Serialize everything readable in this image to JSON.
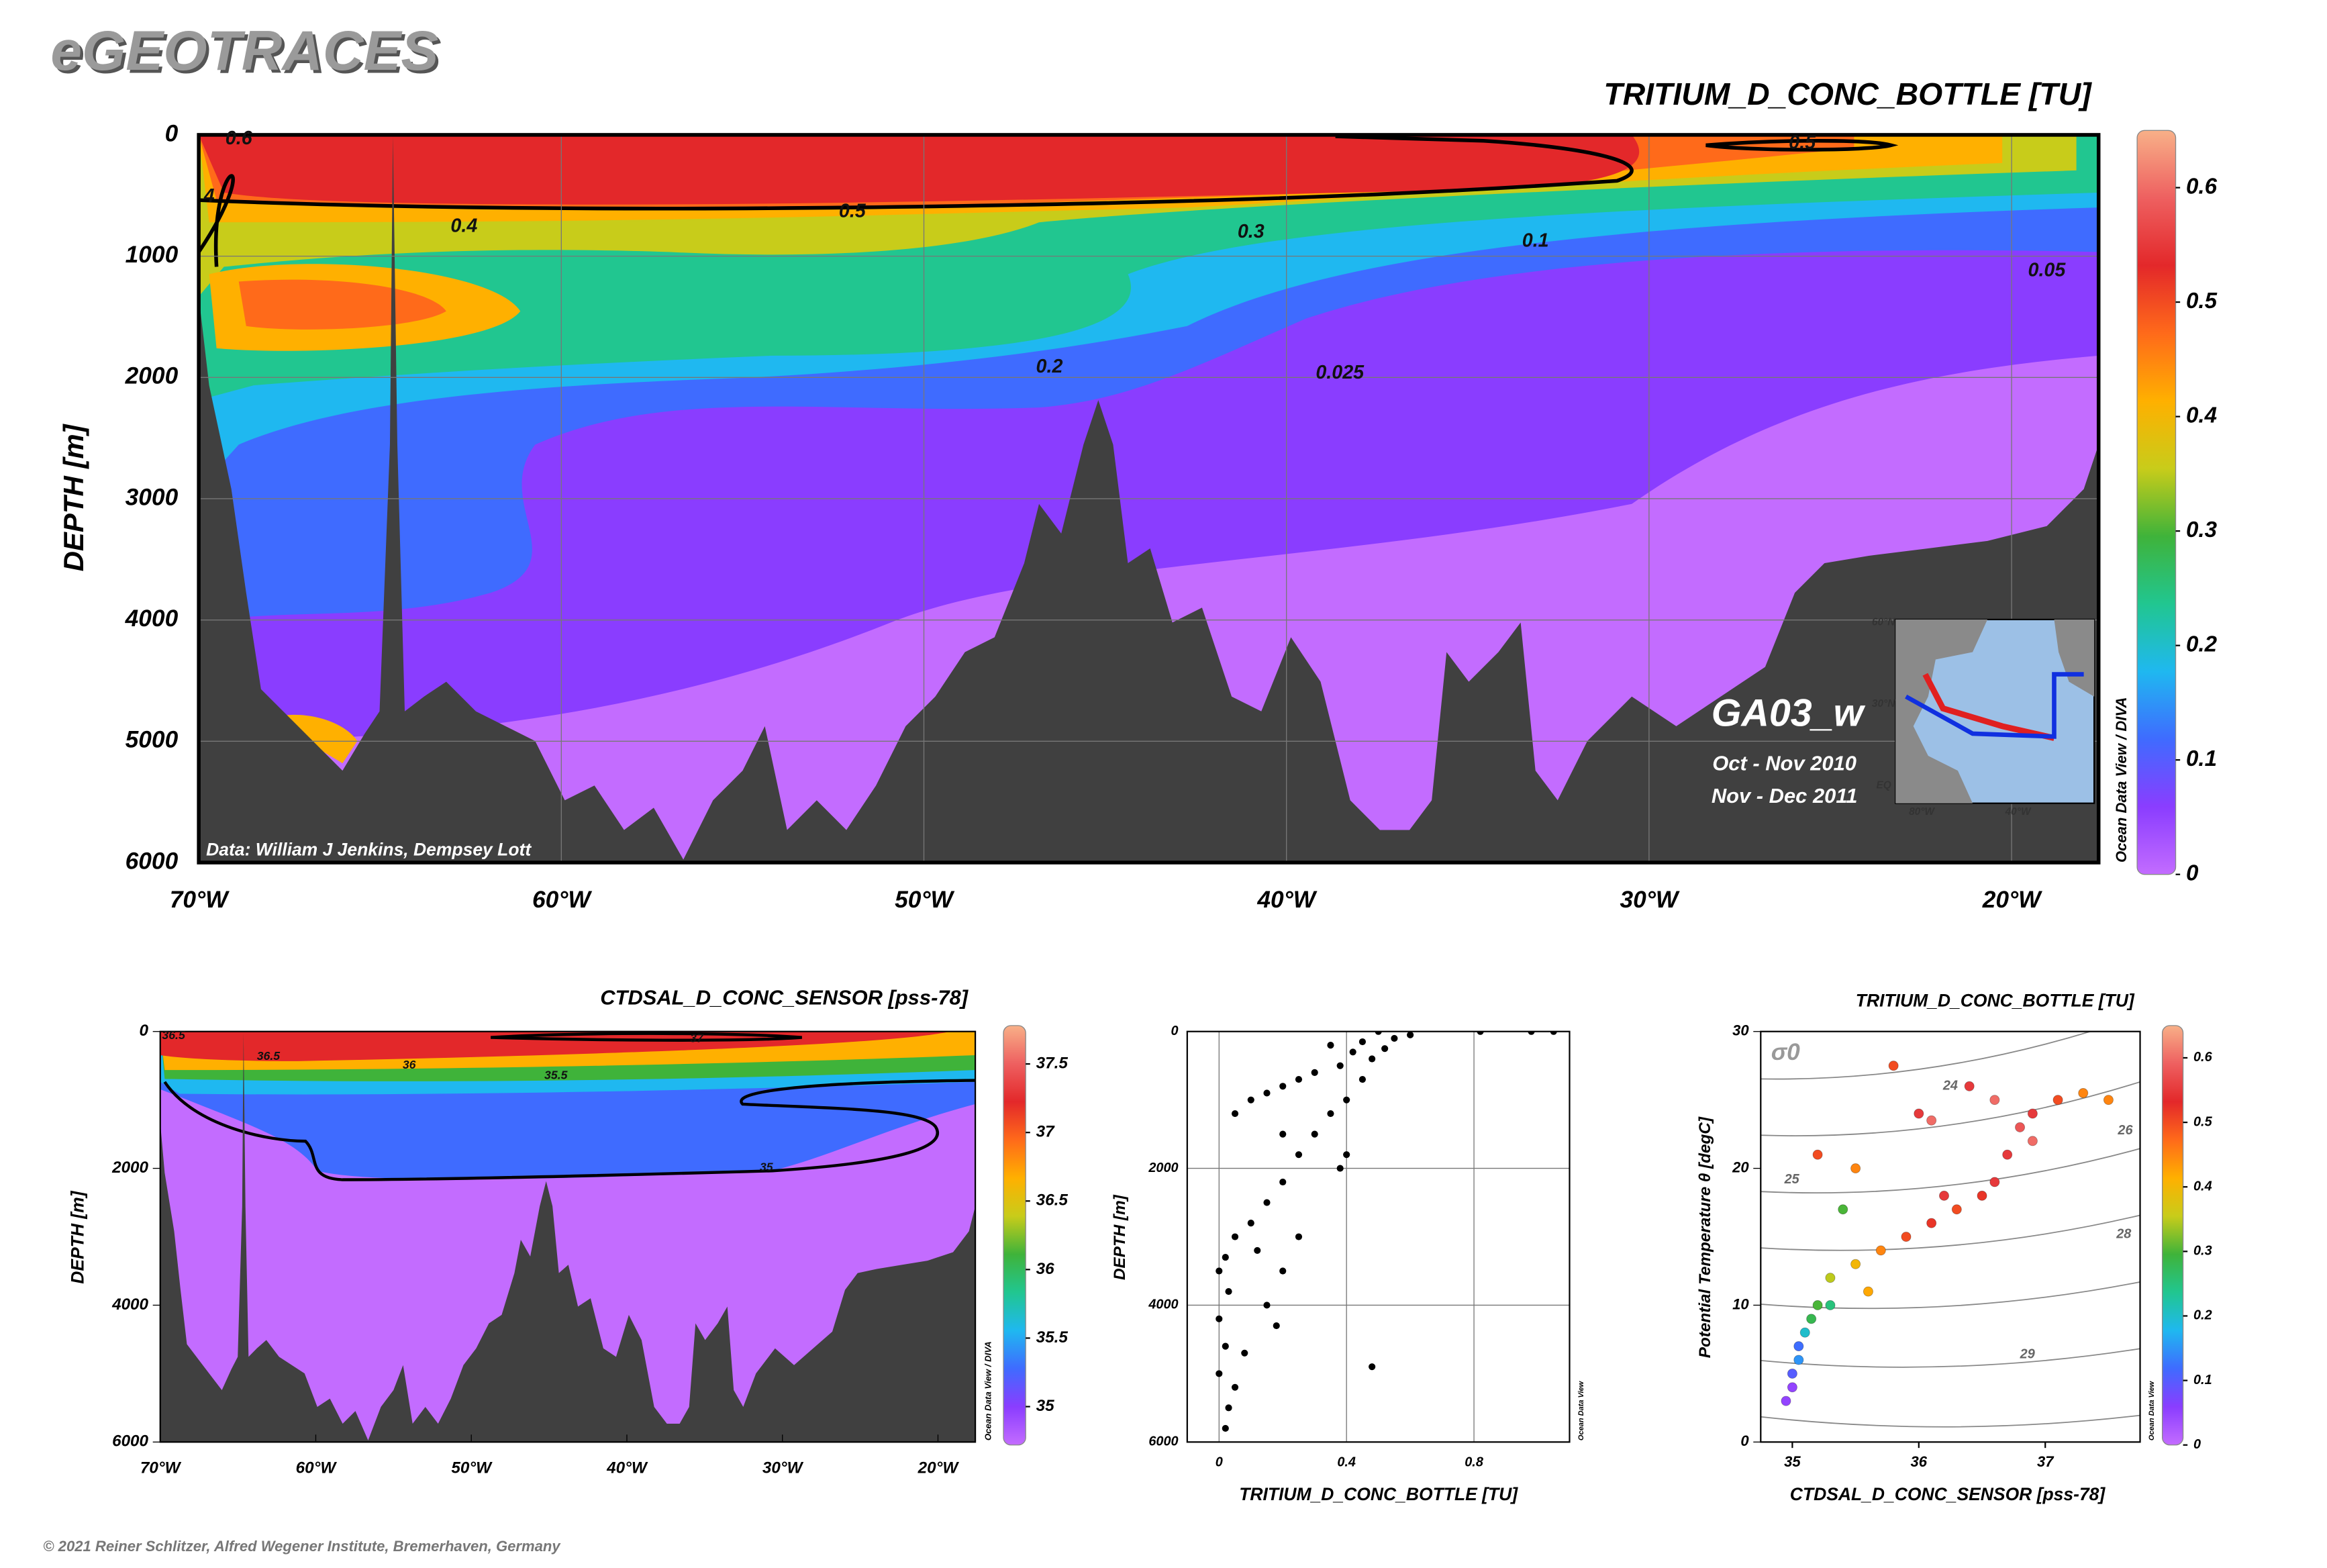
{
  "header": {
    "logo": "eGEOTRACES",
    "copyright": "© 2021 Reiner Schlitzer, Alfred Wegener Institute, Bremerhaven, Germany"
  },
  "chart_data": [
    {
      "type": "section",
      "title": "TRITIUM_D_CONC_BOTTLE [TU]",
      "ylabel": "DEPTH [m]",
      "xlim": [
        -70,
        -17.6
      ],
      "ylim": [
        6000,
        0
      ],
      "xticks": [
        {
          "value": -70,
          "label": "70°W"
        },
        {
          "value": -60,
          "label": "60°W"
        },
        {
          "value": -50,
          "label": "50°W"
        },
        {
          "value": -40,
          "label": "40°W"
        },
        {
          "value": -30,
          "label": "30°W"
        },
        {
          "value": -20,
          "label": "20°W"
        }
      ],
      "yticks": [
        0,
        1000,
        2000,
        3000,
        4000,
        5000,
        6000
      ],
      "grid": true,
      "contour_labels": [
        0.6,
        4,
        0.5,
        0.4,
        0.3,
        0.1,
        0.05,
        0.2,
        0.025,
        0.5
      ],
      "annotations": {
        "credit": "Data: William J Jenkins, Dempsey Lott",
        "cruise": "GA03_w",
        "dates": [
          "Oct - Nov 2010",
          "Nov - Dec 2011"
        ]
      },
      "inset_labels": [
        "60°N",
        "30°N",
        "EQ",
        "80°W",
        "40°W"
      ],
      "watermark": "Ocean Data View / DIVA",
      "colorbar": {
        "lim": [
          0,
          0.65
        ],
        "ticks": [
          0,
          0.1,
          0.2,
          0.3,
          0.4,
          0.5,
          0.6
        ],
        "colors": [
          "#c36cff",
          "#8a3dff",
          "#3f6bff",
          "#1fb8f0",
          "#21c690",
          "#3fb33a",
          "#c8cc1a",
          "#ffb000",
          "#ff6a1a",
          "#e3282a",
          "#ee6060",
          "#f8b088"
        ]
      }
    },
    {
      "type": "section",
      "title": "CTDSAL_D_CONC_SENSOR [pss-78]",
      "ylabel": "DEPTH [m]",
      "xlim": [
        -70,
        -17.6
      ],
      "ylim": [
        6000,
        0
      ],
      "xticks": [
        {
          "value": -70,
          "label": "70°W"
        },
        {
          "value": -60,
          "label": "60°W"
        },
        {
          "value": -50,
          "label": "50°W"
        },
        {
          "value": -40,
          "label": "40°W"
        },
        {
          "value": -30,
          "label": "30°W"
        },
        {
          "value": -20,
          "label": "20°W"
        }
      ],
      "yticks": [
        0,
        2000,
        4000,
        6000
      ],
      "grid": false,
      "contour_labels": [
        36.5,
        36.5,
        36,
        37,
        35.5,
        35
      ],
      "watermark": "Ocean Data View / DIVA",
      "colorbar": {
        "lim": [
          34.72,
          37.78
        ],
        "ticks": [
          35,
          35.5,
          36,
          36.5,
          37,
          37.5
        ],
        "colors": [
          "#c36cff",
          "#8a3dff",
          "#3f6bff",
          "#1fb8f0",
          "#21c690",
          "#3fb33a",
          "#c8cc1a",
          "#ffb000",
          "#ff6a1a",
          "#e3282a",
          "#ee6060",
          "#f8b088"
        ]
      }
    },
    {
      "type": "scatter",
      "xlabel": "TRITIUM_D_CONC_BOTTLE [TU]",
      "ylabel": "DEPTH [m]",
      "xlim": [
        -0.1,
        1.1
      ],
      "ylim": [
        6000,
        0
      ],
      "xticks": [
        0,
        0.4,
        0.8
      ],
      "yticks": [
        0,
        2000,
        4000,
        6000
      ],
      "grid": true,
      "color": "#000000",
      "watermark": "Ocean Data View",
      "x": [
        0.98,
        1.05,
        0.82,
        0.6,
        0.55,
        0.5,
        0.45,
        0.52,
        0.48,
        0.42,
        0.38,
        0.35,
        0.3,
        0.25,
        0.2,
        0.15,
        0.1,
        0.05,
        0.4,
        0.35,
        0.45,
        0.3,
        0.25,
        0.2,
        0.4,
        0.38,
        0.2,
        0.15,
        0.1,
        0.05,
        0.02,
        0,
        0.03,
        0,
        0.02,
        0,
        0.05,
        0.03,
        0.02,
        0.2,
        0.15,
        0.18,
        0.12,
        0.08,
        0.48,
        0.25
      ],
      "y": [
        0,
        0,
        0,
        50,
        100,
        0,
        150,
        250,
        400,
        300,
        500,
        200,
        600,
        700,
        800,
        900,
        1000,
        1200,
        1000,
        1200,
        700,
        1500,
        1800,
        1500,
        1800,
        2000,
        2200,
        2500,
        2800,
        3000,
        3300,
        3500,
        3800,
        4200,
        4600,
        5000,
        5200,
        5500,
        5800,
        3500,
        4000,
        4300,
        3200,
        4700,
        4900,
        3000
      ]
    },
    {
      "type": "scatter",
      "title": "TRITIUM_D_CONC_BOTTLE [TU]",
      "xlabel": "CTDSAL_D_CONC_SENSOR [pss-78]",
      "ylabel": "Potential Temperature θ [degC]",
      "xlim": [
        34.75,
        37.75
      ],
      "ylim": [
        0,
        30
      ],
      "xticks": [
        35,
        36,
        37
      ],
      "yticks": [
        0,
        10,
        20,
        30
      ],
      "grid": false,
      "isopycnal_labels": [
        24,
        25,
        26,
        28,
        29
      ],
      "sigma_label": "σ0",
      "watermark": "Ocean Data View",
      "colorbar": {
        "lim": [
          0,
          0.65
        ],
        "ticks": [
          0,
          0.1,
          0.2,
          0.3,
          0.4,
          0.5,
          0.6
        ],
        "colors": [
          "#c36cff",
          "#8a3dff",
          "#3f6bff",
          "#1fb8f0",
          "#21c690",
          "#3fb33a",
          "#c8cc1a",
          "#ffb000",
          "#ff6a1a",
          "#e3282a",
          "#ee6060",
          "#f8b088"
        ]
      },
      "x": [
        34.95,
        35.0,
        35.05,
        35.1,
        35.2,
        35.3,
        35.5,
        35.7,
        35.9,
        36.1,
        36.3,
        36.5,
        36.6,
        36.7,
        36.8,
        36.9,
        37.1,
        37.3,
        37.5,
        36.0,
        36.1,
        36.4,
        36.6,
        35.8,
        35.4,
        35.2,
        35.5,
        35.3,
        35.0,
        35.05,
        35.15,
        36.2,
        36.9,
        35.6
      ],
      "y": [
        3,
        5,
        6,
        8,
        10,
        12,
        13,
        14,
        15,
        16,
        17,
        18,
        19,
        21,
        23,
        24,
        25,
        25.5,
        25,
        24,
        23.5,
        26,
        25,
        27.5,
        17,
        21,
        20,
        10,
        4,
        7,
        9,
        18,
        22,
        11
      ],
      "color_values": [
        0.05,
        0.1,
        0.15,
        0.2,
        0.3,
        0.35,
        0.4,
        0.45,
        0.5,
        0.52,
        0.5,
        0.52,
        0.55,
        0.55,
        0.58,
        0.55,
        0.5,
        0.45,
        0.45,
        0.55,
        0.6,
        0.55,
        0.6,
        0.5,
        0.3,
        0.5,
        0.45,
        0.25,
        0.05,
        0.12,
        0.28,
        0.55,
        0.6,
        0.42
      ]
    }
  ]
}
